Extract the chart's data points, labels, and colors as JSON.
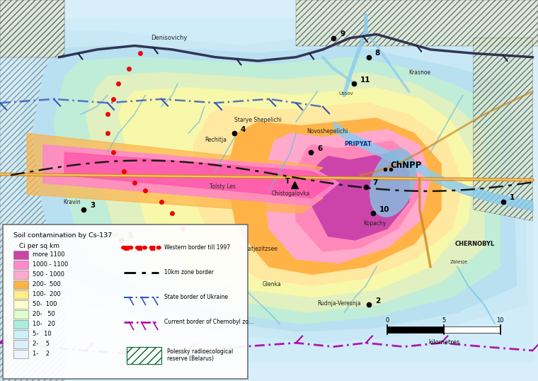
{
  "figsize": [
    7.6,
    5.38
  ],
  "dpi": 100,
  "legend": {
    "title_line1": "Soil contamination by Cs-137",
    "title_line2": "Ci per sq km",
    "colors": [
      "#CC44AA",
      "#FF88CC",
      "#FFAACC",
      "#FFB347",
      "#FFEE88",
      "#FFFFCC",
      "#DDFFCC",
      "#AAEEDD",
      "#CCF0F8",
      "#DDEEF8",
      "#EEF5FF"
    ],
    "labels": [
      "more 1100",
      "1000 - 1100",
      "500 - 1000",
      "200-  500",
      "100-  200",
      "50-  100",
      "20-   50",
      "10-   20",
      "5-   10",
      "2-    5",
      "1-    2"
    ]
  },
  "line_legend": [
    {
      "color": "#FF0000",
      "label": "Western border till 1997"
    },
    {
      "color": "#000000",
      "label": "10km zone border"
    },
    {
      "color": "#3366CC",
      "label": "State border of Ukraine"
    },
    {
      "color": "#AA00AA",
      "label": "Current border of Chernobyl zo…"
    }
  ],
  "hatch_label": "Polessky radioecological\nreserve (Belarus)",
  "scale_label": "kilometres"
}
